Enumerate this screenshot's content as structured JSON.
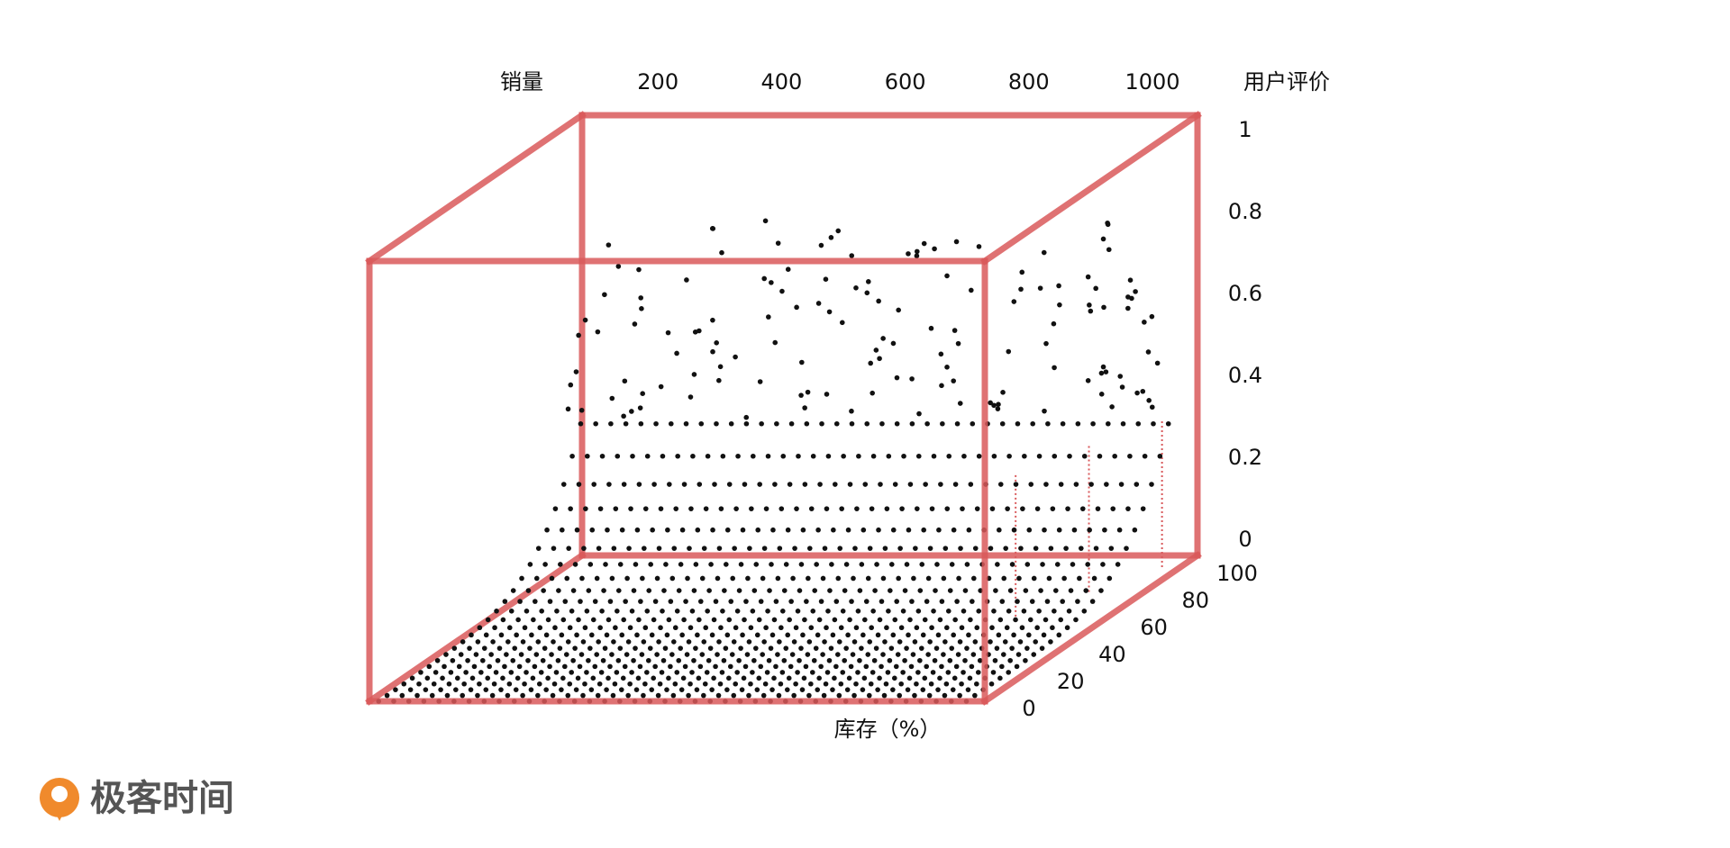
{
  "axes": {
    "x_title": "销量",
    "x_ticks": [
      200,
      400,
      600,
      800,
      1000
    ],
    "z_title": "用户评价",
    "z_ticks": [
      1,
      0.8,
      0.6,
      0.4,
      0.2,
      0
    ],
    "y_title": "库存（%）",
    "y_ticks": [
      100,
      80,
      60,
      40,
      20,
      0
    ]
  },
  "logo": {
    "text": "极客时间"
  }
}
